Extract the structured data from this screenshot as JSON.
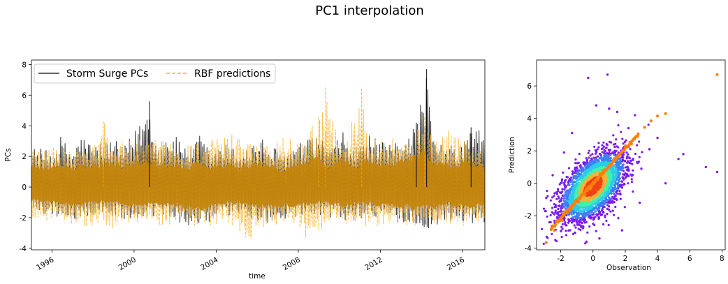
{
  "figure": {
    "suptitle": "PC1 interpolation"
  },
  "chart_data": [
    {
      "type": "line",
      "xlabel": "time",
      "ylabel": "PCs",
      "xlim": [
        "1995-01-01",
        "2017-02-01"
      ],
      "ylim": [
        -4.1,
        8.3
      ],
      "x_ticks": [
        {
          "date": "1996-01-01",
          "label": "1996"
        },
        {
          "date": "2000-01-01",
          "label": "2000"
        },
        {
          "date": "2004-01-01",
          "label": "2004"
        },
        {
          "date": "2008-01-01",
          "label": "2008"
        },
        {
          "date": "2012-01-01",
          "label": "2012"
        },
        {
          "date": "2016-01-01",
          "label": "2016"
        }
      ],
      "y_ticks": [
        -4,
        -2,
        0,
        2,
        4,
        6,
        8
      ],
      "grid": false,
      "legend_position": "top-left",
      "series": [
        {
          "name": "Storm Surge PCs",
          "style": "solid",
          "color": "#000000",
          "opacity": 0.8,
          "envelope_upper": [
            [
              "1995-02-01",
              2.6
            ],
            [
              "1996-02-01",
              2.3
            ],
            [
              "1996-06-01",
              3.3
            ],
            [
              "1997-01-01",
              2.4
            ],
            [
              "1997-06-01",
              3.4
            ],
            [
              "1998-01-01",
              2.8
            ],
            [
              "1999-01-01",
              3.2
            ],
            [
              "1999-06-01",
              2.6
            ],
            [
              "2000-01-01",
              3.5
            ],
            [
              "2000-10-01",
              5.6
            ],
            [
              "2001-03-01",
              2.6
            ],
            [
              "2001-08-01",
              3.6
            ],
            [
              "2002-03-01",
              3.2
            ],
            [
              "2002-10-01",
              2.6
            ],
            [
              "2003-03-01",
              3.4
            ],
            [
              "2003-10-01",
              2.4
            ],
            [
              "2004-06-01",
              2.8
            ],
            [
              "2005-03-01",
              2.4
            ],
            [
              "2006-03-01",
              3.2
            ],
            [
              "2007-03-01",
              2.2
            ],
            [
              "2008-03-01",
              2.9
            ],
            [
              "2009-01-01",
              3.4
            ],
            [
              "2009-09-01",
              2.6
            ],
            [
              "2010-03-01",
              3.6
            ],
            [
              "2010-10-01",
              2.5
            ],
            [
              "2011-06-01",
              3.4
            ],
            [
              "2012-06-01",
              2.7
            ],
            [
              "2013-03-01",
              3.5
            ],
            [
              "2013-10-01",
              4.2
            ],
            [
              "2014-04-01",
              7.7
            ],
            [
              "2014-08-01",
              3.0
            ],
            [
              "2015-03-01",
              2.8
            ],
            [
              "2015-10-01",
              2.6
            ],
            [
              "2016-06-01",
              3.9
            ],
            [
              "2017-01-01",
              3.6
            ]
          ],
          "envelope_lower": [
            [
              "1995-02-01",
              -1.6
            ],
            [
              "1996-03-01",
              -1.9
            ],
            [
              "1997-02-01",
              -2.2
            ],
            [
              "1998-05-01",
              -1.8
            ],
            [
              "1999-02-01",
              -2.0
            ],
            [
              "2000-03-01",
              -2.4
            ],
            [
              "2001-02-01",
              -1.9
            ],
            [
              "2002-03-01",
              -2.3
            ],
            [
              "2003-06-01",
              -2.8
            ],
            [
              "2004-03-01",
              -2.0
            ],
            [
              "2005-03-01",
              -1.9
            ],
            [
              "2006-03-01",
              -2.4
            ],
            [
              "2007-06-01",
              -2.2
            ],
            [
              "2008-06-01",
              -2.1
            ],
            [
              "2009-06-01",
              -1.9
            ],
            [
              "2010-03-01",
              -2.3
            ],
            [
              "2011-03-01",
              -2.0
            ],
            [
              "2012-03-01",
              -2.2
            ],
            [
              "2013-03-01",
              -2.3
            ],
            [
              "2014-04-01",
              -2.9
            ],
            [
              "2015-03-01",
              -2.1
            ],
            [
              "2016-03-01",
              -2.4
            ],
            [
              "2017-01-01",
              -2.3
            ]
          ]
        },
        {
          "name": "RBF predictions",
          "style": "dashed",
          "color": "#ffa500",
          "opacity": 0.75,
          "envelope_upper": [
            [
              "1995-02-01",
              2.8
            ],
            [
              "1996-02-01",
              2.6
            ],
            [
              "1997-02-01",
              2.4
            ],
            [
              "1998-03-01",
              2.8
            ],
            [
              "1998-07-01",
              4.3
            ],
            [
              "1999-03-01",
              3.0
            ],
            [
              "2000-06-01",
              3.1
            ],
            [
              "2001-06-01",
              3.0
            ],
            [
              "2002-06-01",
              2.8
            ],
            [
              "2003-06-01",
              3.0
            ],
            [
              "2004-06-01",
              3.2
            ],
            [
              "2005-03-01",
              3.7
            ],
            [
              "2005-10-01",
              3.0
            ],
            [
              "2006-06-01",
              2.9
            ],
            [
              "2007-06-01",
              3.4
            ],
            [
              "2008-03-01",
              3.0
            ],
            [
              "2009-01-01",
              4.6
            ],
            [
              "2009-05-01",
              6.6
            ],
            [
              "2009-10-01",
              3.8
            ],
            [
              "2010-06-01",
              3.4
            ],
            [
              "2011-02-01",
              6.4
            ],
            [
              "2011-08-01",
              3.6
            ],
            [
              "2012-06-01",
              3.3
            ],
            [
              "2013-06-01",
              3.2
            ],
            [
              "2014-03-01",
              4.6
            ],
            [
              "2014-09-01",
              3.2
            ],
            [
              "2015-06-01",
              3.8
            ],
            [
              "2016-06-01",
              2.8
            ],
            [
              "2017-01-01",
              2.5
            ]
          ],
          "envelope_lower": [
            [
              "1995-02-01",
              -2.4
            ],
            [
              "1996-06-01",
              -2.2
            ],
            [
              "1998-01-01",
              -2.8
            ],
            [
              "1998-09-01",
              -3.1
            ],
            [
              "1999-06-01",
              -2.4
            ],
            [
              "2001-03-01",
              -2.5
            ],
            [
              "2002-06-01",
              -2.4
            ],
            [
              "2003-06-01",
              -2.6
            ],
            [
              "2004-06-01",
              -2.3
            ],
            [
              "2005-09-01",
              -3.5
            ],
            [
              "2006-06-01",
              -2.6
            ],
            [
              "2007-06-01",
              -2.3
            ],
            [
              "2008-09-01",
              -3.6
            ],
            [
              "2009-06-01",
              -2.5
            ],
            [
              "2010-06-01",
              -2.4
            ],
            [
              "2011-06-01",
              -2.7
            ],
            [
              "2012-06-01",
              -2.3
            ],
            [
              "2013-06-01",
              -2.5
            ],
            [
              "2014-06-01",
              -2.4
            ],
            [
              "2015-06-01",
              -2.4
            ],
            [
              "2016-06-01",
              -2.6
            ],
            [
              "2017-01-01",
              -2.2
            ]
          ]
        }
      ],
      "overlap_color": "#c4860c"
    },
    {
      "type": "scatter",
      "xlabel": "Observation",
      "ylabel": "Prediction",
      "xlim": [
        -3.5,
        8.2
      ],
      "ylim": [
        -4.1,
        7.6
      ],
      "x_ticks": [
        -2,
        0,
        2,
        4,
        6,
        8
      ],
      "y_ticks": [
        -4,
        -2,
        0,
        2,
        4,
        6
      ],
      "grid": false,
      "density_colormap": [
        "#7a1cf0",
        "#3f7ff6",
        "#29cde9",
        "#43f0ad",
        "#f5b338",
        "#f04416"
      ],
      "density_cloud": {
        "center": [
          0.0,
          -0.2
        ],
        "spread_observation": 0.95,
        "spread_prediction": 1.0,
        "correlation": 0.55
      },
      "outliers": [
        [
          0.9,
          6.7
        ],
        [
          -0.3,
          6.5
        ],
        [
          7.7,
          0.7
        ],
        [
          7.0,
          1.0
        ],
        [
          5.6,
          1.8
        ],
        [
          5.3,
          1.5
        ],
        [
          4.5,
          0.0
        ],
        [
          0.2,
          4.8
        ],
        [
          1.5,
          4.4
        ],
        [
          2.6,
          4.2
        ],
        [
          3.5,
          2.1
        ],
        [
          3.0,
          0.9
        ],
        [
          -2.9,
          -0.9
        ],
        [
          -2.5,
          0.5
        ],
        [
          -1.8,
          1.9
        ],
        [
          0.4,
          -3.4
        ],
        [
          -0.4,
          -3.6
        ],
        [
          1.8,
          -2.9
        ],
        [
          -2.7,
          -2.4
        ],
        [
          2.2,
          3.4
        ],
        [
          4.0,
          2.8
        ],
        [
          -1.3,
          3.1
        ],
        [
          1.0,
          4.6
        ],
        [
          2.9,
          -1.2
        ]
      ],
      "fit_line": {
        "color": "#ff7f0e",
        "points": [
          [
            -2.9,
            -3.65
          ],
          [
            -2.4,
            -2.9
          ],
          [
            -1.9,
            -2.3
          ],
          [
            -1.4,
            -1.7
          ],
          [
            -0.9,
            -1.15
          ],
          [
            -0.5,
            -0.7
          ],
          [
            -0.1,
            -0.2
          ],
          [
            0.3,
            0.25
          ],
          [
            0.8,
            0.8
          ],
          [
            1.3,
            1.35
          ],
          [
            1.8,
            1.95
          ],
          [
            2.3,
            2.5
          ],
          [
            2.8,
            3.05
          ],
          [
            3.2,
            3.45
          ],
          [
            3.6,
            3.85
          ],
          [
            4.0,
            4.15
          ],
          [
            4.5,
            4.3
          ],
          [
            7.7,
            6.7
          ]
        ]
      }
    }
  ]
}
